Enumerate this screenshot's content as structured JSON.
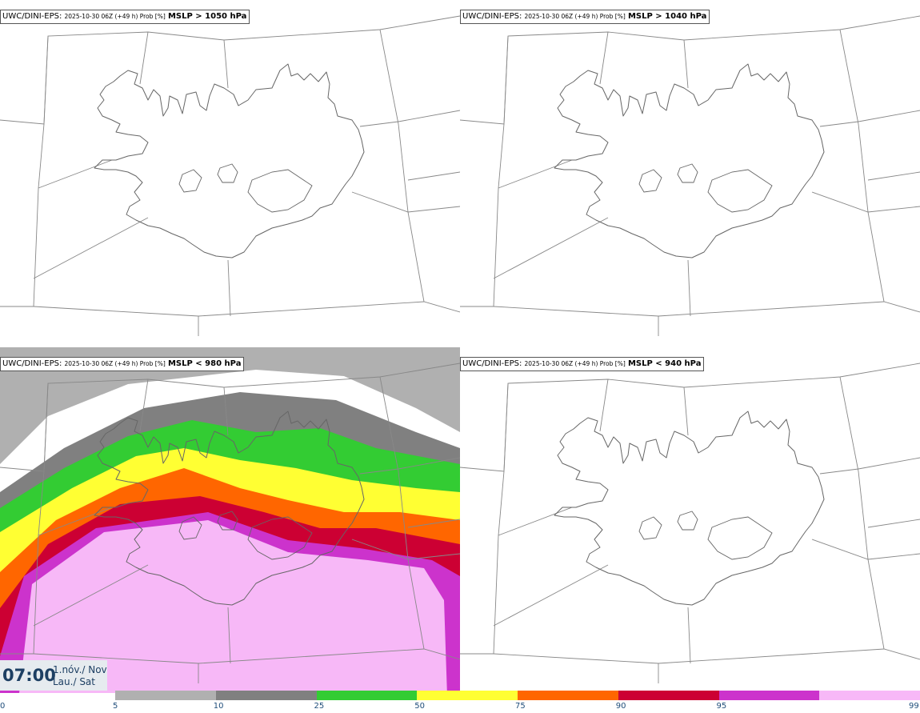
{
  "panels": [
    {
      "source": "UWC/DINI-EPS",
      "run": "2025-10-30 06Z (+49 h) Prob [%]",
      "variable": "MSLP > 1050 hPa"
    },
    {
      "source": "UWC/DINI-EPS",
      "run": "2025-10-30 06Z (+49 h) Prob [%]",
      "variable": "MSLP > 1040 hPa"
    },
    {
      "source": "UWC/DINI-EPS",
      "run": "2025-10-30 06Z (+49 h) Prob [%]",
      "variable": "MSLP < 980 hPa"
    },
    {
      "source": "UWC/DINI-EPS",
      "run": "2025-10-30 06Z (+49 h) Prob [%]",
      "variable": "MSLP < 940 hPa"
    }
  ],
  "valid_time": {
    "time": "07:00",
    "date_line1": "1.nóv./ Nov",
    "date_line2": "Lau./ Sat"
  },
  "colorbar": {
    "ticks": [
      "0",
      "5",
      "10",
      "25",
      "50",
      "75",
      "90",
      "95",
      "99"
    ],
    "bins": [
      {
        "from": 0,
        "to": 5,
        "color": "#ffffff"
      },
      {
        "from": 5,
        "to": 10,
        "color": "#b0b0b0"
      },
      {
        "from": 10,
        "to": 25,
        "color": "#808080"
      },
      {
        "from": 25,
        "to": 50,
        "color": "#33cc33"
      },
      {
        "from": 50,
        "to": 75,
        "color": "#ffff33"
      },
      {
        "from": 75,
        "to": 90,
        "color": "#ff6600"
      },
      {
        "from": 90,
        "to": 95,
        "color": "#cc0033"
      },
      {
        "from": 95,
        "to": 99,
        "color": "#cc33cc"
      },
      {
        "from": 99,
        "to": 100,
        "color": "#f7b8f7"
      }
    ]
  }
}
